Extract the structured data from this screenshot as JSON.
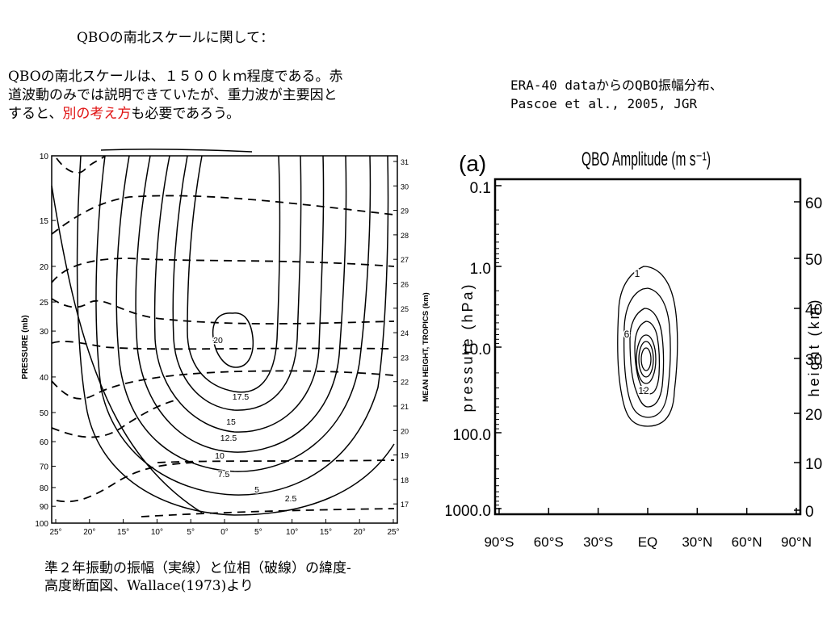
{
  "slide": {
    "heading": "QBOの南北スケールに関して：",
    "para_line1": "QBOの南北スケールは、１５００ｋｍ程度である。赤",
    "para_line2": "道波動のみでは説明できていたが、重力波が主要因と",
    "para_line3_a": "すると、",
    "para_line3_red": "別の考え方",
    "para_line3_b": "も必要であろう。",
    "ref_line1": "ERA-40 dataからのQBO振幅分布、",
    "ref_line2": "Pascoe et al., 2005, JGR",
    "caption_line1": "準２年振動の振幅（実線）と位相（破線）の緯度-",
    "caption_line2": "高度断面図、Wallace(1973)より",
    "accent_red": "#e01010"
  },
  "chart_data": [
    {
      "type": "contour",
      "title": "",
      "ylabel": "PRESSURE (mb)",
      "ylabel_right": "MEAN HEIGHT, TROPICS (km)",
      "x_ticks": [
        "25°",
        "20°",
        "15°",
        "10°",
        "5°",
        "0°",
        "5°",
        "10°",
        "15°",
        "20°",
        "25°"
      ],
      "y_ticks": [
        "10",
        "15",
        "20",
        "25",
        "30",
        "40",
        "50",
        "60",
        "70",
        "80",
        "90",
        "100"
      ],
      "y_ticks_right": [
        "31",
        "30",
        "29",
        "28",
        "27",
        "26",
        "25",
        "24",
        "23",
        "22",
        "21",
        "20",
        "19",
        "18",
        "17"
      ],
      "contour_labels": [
        "20",
        "17.5",
        "15",
        "12.5",
        "10",
        "7.5",
        "5",
        "2.5"
      ],
      "amplitude_contour_levels": [
        2.5,
        5,
        7.5,
        10,
        12.5,
        15,
        17.5,
        20
      ],
      "solid_line": "amplitude",
      "dashed_line": "phase"
    },
    {
      "type": "contour",
      "panel_label": "(a)",
      "title": "QBO Amplitude (m s⁻¹)",
      "ylabel": "pressure (hPa)",
      "ylabel_right": "height (km)",
      "x_ticks": [
        "90°S",
        "60°S",
        "30°S",
        "EQ",
        "30°N",
        "60°N",
        "90°N"
      ],
      "y_ticks": [
        "0.1",
        "1.0",
        "10.0",
        "100.0",
        "1000.0"
      ],
      "y_ticks_right": [
        "60",
        "50",
        "40",
        "30",
        "20",
        "10",
        "0"
      ],
      "contour_labels": [
        "1",
        "6",
        "12"
      ],
      "ylim_hPa": [
        1000,
        0.1
      ],
      "ylim_km": [
        0,
        65
      ]
    }
  ]
}
